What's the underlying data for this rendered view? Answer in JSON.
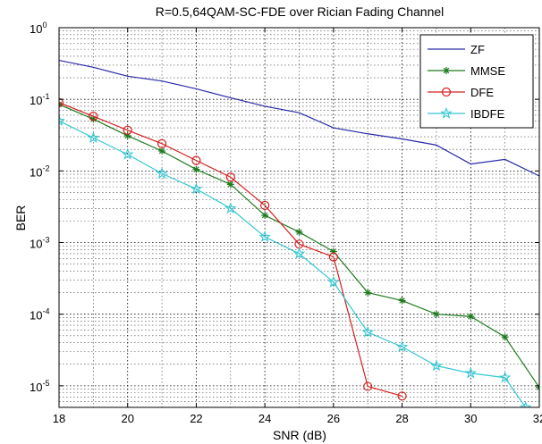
{
  "chart_data": {
    "type": "line",
    "title": "R=0.5,64QAM-SC-FDE over Rician Fading Channel",
    "xlabel": "SNR (dB)",
    "ylabel": "BER",
    "xlim": [
      18,
      32
    ],
    "ylim": [
      5e-06,
      1
    ],
    "yscale": "log",
    "grid": true,
    "legend_position": "top-right",
    "x_ticks": [
      18,
      20,
      22,
      24,
      26,
      28,
      30,
      32
    ],
    "y_ticks": [
      {
        "base": "10",
        "exp": "-5",
        "value": 1e-05
      },
      {
        "base": "10",
        "exp": "-4",
        "value": 0.0001
      },
      {
        "base": "10",
        "exp": "-3",
        "value": 0.001
      },
      {
        "base": "10",
        "exp": "-2",
        "value": 0.01
      },
      {
        "base": "10",
        "exp": "-1",
        "value": 0.1
      },
      {
        "base": "10",
        "exp": "0",
        "value": 1
      }
    ],
    "series": [
      {
        "name": "ZF",
        "color": "#2a2aa8",
        "marker": "none",
        "x": [
          18,
          19,
          20,
          21,
          22,
          23,
          24,
          25,
          26,
          27,
          28,
          29,
          30,
          31,
          32
        ],
        "y": [
          0.35,
          0.28,
          0.21,
          0.18,
          0.14,
          0.105,
          0.08,
          0.065,
          0.04,
          0.033,
          0.028,
          0.023,
          0.0125,
          0.0145,
          0.0085
        ]
      },
      {
        "name": "MMSE",
        "color": "#1e7a1e",
        "marker": "star",
        "x": [
          18,
          19,
          20,
          21,
          22,
          23,
          24,
          25,
          26,
          27,
          28,
          29,
          30,
          31,
          32
        ],
        "y": [
          0.085,
          0.053,
          0.031,
          0.019,
          0.0105,
          0.0065,
          0.0024,
          0.0014,
          0.00075,
          0.0002,
          0.000155,
          0.0001,
          9.3e-05,
          4.8e-05,
          9.5e-06
        ]
      },
      {
        "name": "DFE",
        "color": "#d42020",
        "marker": "circle",
        "x": [
          18,
          19,
          20,
          21,
          22,
          23,
          24,
          25,
          26,
          27,
          28
        ],
        "y": [
          0.09,
          0.058,
          0.037,
          0.024,
          0.014,
          0.0082,
          0.0033,
          0.00095,
          0.00063,
          9.8e-06,
          7.2e-06
        ]
      },
      {
        "name": "IBDFE",
        "color": "#33c8d2",
        "marker": "pentagram",
        "x": [
          18,
          19,
          20,
          21,
          22,
          23,
          24,
          25,
          26,
          27,
          28,
          29,
          30,
          31,
          31.6
        ],
        "y": [
          0.05,
          0.029,
          0.017,
          0.0092,
          0.0056,
          0.003,
          0.0012,
          0.0007,
          0.00028,
          5.6e-05,
          3.5e-05,
          1.9e-05,
          1.5e-05,
          1.3e-05,
          5e-06
        ]
      }
    ]
  }
}
